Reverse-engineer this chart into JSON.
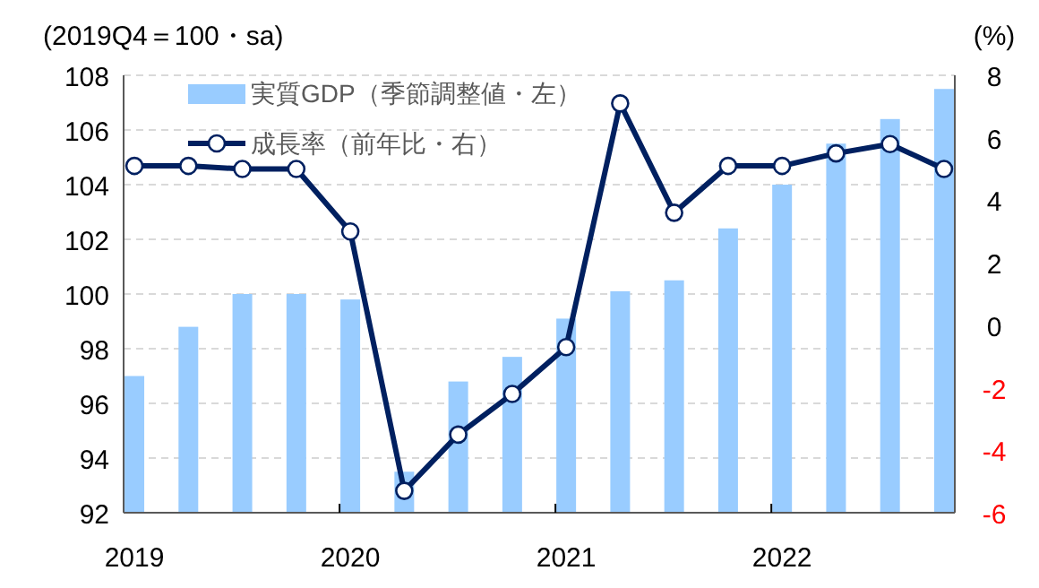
{
  "chart_data": {
    "type": "bar",
    "ylabel": "(2019Q4＝100・sa)",
    "y2label": "(%)",
    "categories": [
      "2019",
      null,
      null,
      null,
      "2020",
      null,
      null,
      null,
      "2021",
      null,
      null,
      null,
      "2022",
      null,
      null,
      null
    ],
    "series": [
      {
        "name": "実質GDP（季節調整値・左）",
        "color": "#99ccff",
        "values": [
          97.0,
          98.8,
          100.0,
          100.0,
          99.8,
          93.5,
          96.8,
          97.7,
          99.1,
          100.1,
          100.5,
          102.4,
          104.0,
          105.5,
          106.4,
          107.5
        ]
      },
      {
        "name": "成長率（前年比・右）",
        "type": "line",
        "axis": "y2",
        "color": "#002060",
        "marker": "circle",
        "line_style": "solid",
        "values": [
          5.1,
          5.1,
          5.0,
          5.0,
          3.0,
          -5.3,
          -3.5,
          -2.2,
          -0.7,
          7.1,
          3.6,
          5.1,
          5.1,
          5.5,
          5.8,
          5.0
        ]
      }
    ],
    "ylim": [
      92,
      108
    ],
    "yticks": [
      92,
      94,
      96,
      98,
      100,
      102,
      104,
      106,
      108
    ],
    "y2lim": [
      -6,
      8
    ],
    "y2ticks": [
      -6,
      -4,
      -2,
      0,
      2,
      4,
      6,
      8
    ],
    "grid": "y",
    "legend": "top left"
  }
}
